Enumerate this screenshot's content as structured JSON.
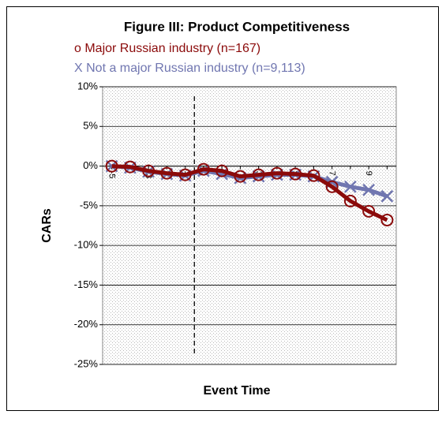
{
  "chart_data": {
    "type": "line",
    "title": "Figure III: Product Competitiveness",
    "x_label": "Event Time",
    "y_label": "CARs",
    "x": [
      -5,
      -4,
      -3,
      -2,
      -1,
      0,
      1,
      2,
      3,
      4,
      5,
      6,
      7,
      8,
      9,
      10
    ],
    "xlim": [
      -5.5,
      10.5
    ],
    "xticks": [
      -5,
      -3,
      -1,
      1,
      3,
      5,
      7,
      9
    ],
    "ylim": [
      -25,
      10
    ],
    "yticks": [
      {
        "value": -25,
        "label": "-25%"
      },
      {
        "value": -20,
        "label": "-20%"
      },
      {
        "value": -15,
        "label": "-15%"
      },
      {
        "value": -10,
        "label": "-10%"
      },
      {
        "value": -5,
        "label": "-5%"
      },
      {
        "value": 0,
        "label": "0%"
      },
      {
        "value": 5,
        "label": "5%"
      },
      {
        "value": 10,
        "label": "10%"
      }
    ],
    "grid": true,
    "vline": -0.5,
    "series": [
      {
        "name": "X Not a major Russian industry (n=9,113)",
        "color": "#7076b0",
        "marker": "x",
        "values": [
          0,
          -0.2,
          -0.7,
          -1.0,
          -1.2,
          -0.6,
          -1.0,
          -1.5,
          -1.3,
          -1.1,
          -1.1,
          -1.3,
          -2.0,
          -2.6,
          -3.0,
          -3.8
        ]
      },
      {
        "name": "o Major Russian industry (n=167)",
        "color": "#8b0a0a",
        "marker": "o",
        "values": [
          0,
          -0.1,
          -0.6,
          -0.9,
          -1.1,
          -0.4,
          -0.6,
          -1.3,
          -1.1,
          -0.9,
          -1.0,
          -1.2,
          -2.6,
          -4.4,
          -5.7,
          -6.8
        ]
      }
    ]
  }
}
